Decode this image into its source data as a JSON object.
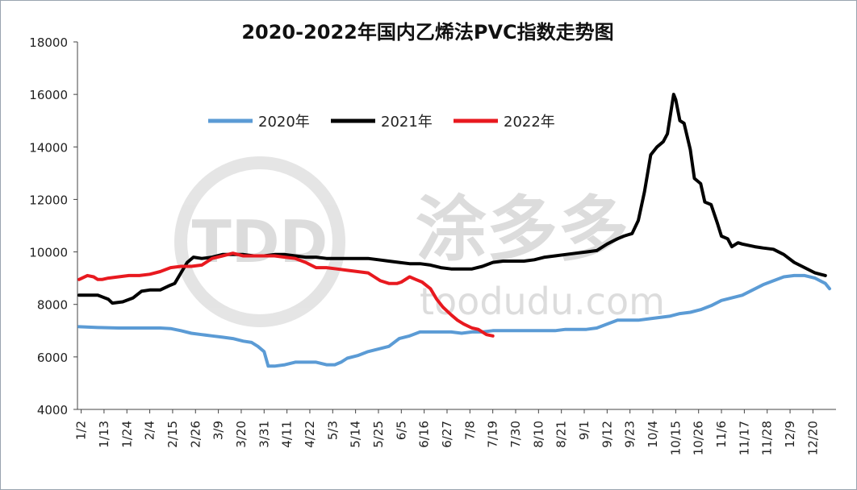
{
  "chart_data": {
    "type": "line",
    "title": "2020-2022年国内乙烯法PVC指数走势图",
    "xlabel": "",
    "ylabel": "",
    "ylim": [
      4000,
      18000
    ],
    "yticks": [
      4000,
      6000,
      8000,
      10000,
      12000,
      14000,
      16000,
      18000
    ],
    "xlim": [
      1,
      362
    ],
    "xtick_labels": [
      "1/2",
      "1/13",
      "1/24",
      "2/4",
      "2/15",
      "2/26",
      "3/9",
      "3/20",
      "3/31",
      "4/11",
      "4/22",
      "5/3",
      "5/14",
      "5/25",
      "6/5",
      "6/16",
      "6/27",
      "7/8",
      "7/19",
      "7/30",
      "8/10",
      "8/21",
      "9/1",
      "9/12",
      "9/23",
      "10/4",
      "10/15",
      "10/26",
      "11/6",
      "11/17",
      "11/28",
      "12/9",
      "12/20"
    ],
    "xtick_days": [
      2,
      13,
      24,
      35,
      46,
      57,
      68,
      79,
      90,
      101,
      112,
      123,
      134,
      145,
      156,
      167,
      178,
      189,
      200,
      211,
      222,
      233,
      244,
      255,
      266,
      277,
      288,
      299,
      310,
      321,
      332,
      343,
      354
    ],
    "grid": false,
    "legend_position": "top-center",
    "series": [
      {
        "name": "2020年",
        "color": "#5b9bd5",
        "x": [
          1,
          10,
          20,
          30,
          40,
          45,
          50,
          55,
          60,
          65,
          70,
          75,
          80,
          84,
          87,
          90,
          92,
          95,
          100,
          105,
          110,
          115,
          120,
          124,
          127,
          130,
          135,
          140,
          145,
          150,
          155,
          160,
          165,
          170,
          175,
          180,
          185,
          190,
          195,
          200,
          205,
          210,
          215,
          220,
          225,
          230,
          235,
          240,
          245,
          250,
          255,
          260,
          265,
          270,
          275,
          280,
          285,
          290,
          295,
          300,
          305,
          310,
          315,
          320,
          325,
          330,
          335,
          340,
          345,
          350,
          355,
          360,
          362
        ],
        "y": [
          7150,
          7120,
          7100,
          7100,
          7100,
          7080,
          7000,
          6900,
          6850,
          6800,
          6750,
          6700,
          6600,
          6550,
          6400,
          6200,
          5650,
          5650,
          5700,
          5800,
          5800,
          5800,
          5700,
          5700,
          5800,
          5950,
          6050,
          6200,
          6300,
          6400,
          6700,
          6800,
          6950,
          6950,
          6950,
          6950,
          6900,
          6950,
          6950,
          7000,
          7000,
          7000,
          7000,
          7000,
          7000,
          7000,
          7050,
          7050,
          7050,
          7100,
          7250,
          7400,
          7400,
          7400,
          7450,
          7500,
          7550,
          7650,
          7700,
          7800,
          7950,
          8150,
          8250,
          8350,
          8550,
          8750,
          8900,
          9050,
          9100,
          9100,
          9000,
          8800,
          8600
        ]
      },
      {
        "name": "2021年",
        "color": "#000000",
        "x": [
          1,
          10,
          15,
          17,
          22,
          27,
          31,
          35,
          40,
          44,
          47,
          50,
          53,
          56,
          60,
          65,
          70,
          75,
          80,
          85,
          90,
          95,
          100,
          105,
          110,
          115,
          120,
          125,
          130,
          135,
          140,
          145,
          150,
          155,
          160,
          165,
          170,
          175,
          180,
          185,
          190,
          195,
          200,
          205,
          210,
          215,
          220,
          225,
          230,
          235,
          240,
          245,
          250,
          255,
          260,
          263,
          265,
          267,
          270,
          273,
          276,
          279,
          282,
          284,
          286,
          287,
          288,
          290,
          292,
          295,
          297,
          300,
          302,
          305,
          308,
          310,
          313,
          315,
          318,
          320,
          323,
          326,
          330,
          335,
          340,
          345,
          350,
          355,
          360
        ],
        "y": [
          8350,
          8350,
          8200,
          8050,
          8100,
          8250,
          8500,
          8550,
          8550,
          8700,
          8800,
          9200,
          9600,
          9800,
          9750,
          9800,
          9900,
          9900,
          9900,
          9850,
          9850,
          9900,
          9900,
          9850,
          9800,
          9800,
          9750,
          9750,
          9750,
          9750,
          9750,
          9700,
          9650,
          9600,
          9550,
          9550,
          9500,
          9400,
          9350,
          9350,
          9350,
          9450,
          9600,
          9650,
          9650,
          9650,
          9700,
          9800,
          9850,
          9900,
          9950,
          10000,
          10050,
          10300,
          10500,
          10600,
          10650,
          10700,
          11200,
          12300,
          13700,
          14000,
          14200,
          14500,
          15500,
          16000,
          15800,
          15000,
          14900,
          13900,
          12800,
          12600,
          11900,
          11800,
          11100,
          10600,
          10500,
          10200,
          10350,
          10300,
          10250,
          10200,
          10150,
          10100,
          9900,
          9600,
          9400,
          9200,
          9100
        ]
      },
      {
        "name": "2022年",
        "color": "#e8191f",
        "x": [
          1,
          5,
          8,
          10,
          12,
          15,
          20,
          25,
          30,
          35,
          40,
          45,
          50,
          55,
          60,
          65,
          70,
          75,
          80,
          85,
          90,
          95,
          100,
          105,
          110,
          115,
          120,
          125,
          130,
          135,
          140,
          143,
          146,
          150,
          154,
          156,
          160,
          163,
          166,
          170,
          173,
          176,
          180,
          183,
          186,
          190,
          193,
          197,
          200
        ],
        "y": [
          8950,
          9100,
          9050,
          8950,
          8950,
          9000,
          9050,
          9100,
          9100,
          9150,
          9250,
          9400,
          9450,
          9450,
          9500,
          9750,
          9850,
          9950,
          9850,
          9850,
          9850,
          9850,
          9800,
          9750,
          9600,
          9400,
          9400,
          9350,
          9300,
          9250,
          9200,
          9050,
          8900,
          8800,
          8800,
          8850,
          9050,
          8950,
          8850,
          8600,
          8200,
          7900,
          7600,
          7400,
          7250,
          7100,
          7050,
          6850,
          6800
        ]
      }
    ]
  },
  "watermark": {
    "brand": "TDD",
    "chinese": "涂多多",
    "url": "toodudu.com"
  }
}
